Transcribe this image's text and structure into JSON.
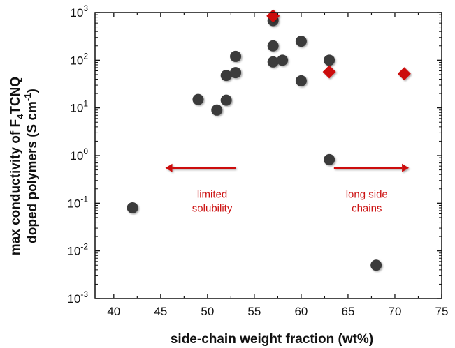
{
  "chart_data": {
    "type": "scatter",
    "xlabel": "side-chain weight fraction (wt%)",
    "ylabel": {
      "line1_pre": "max conductivity of F",
      "line1_sub": "4",
      "line1_post": "TCNQ",
      "line2_pre": "doped polymers (S cm",
      "line2_sup": "-1",
      "line2_post": ")"
    },
    "xlim": [
      38,
      75
    ],
    "ylim": [
      0.001,
      1000
    ],
    "yscale": "log",
    "grid": false,
    "x_ticks": [
      40,
      45,
      50,
      55,
      60,
      65,
      70,
      75
    ],
    "y_ticks": [
      {
        "value": 0.001,
        "base": "10",
        "exp": "-3"
      },
      {
        "value": 0.01,
        "base": "10",
        "exp": "-2"
      },
      {
        "value": 0.1,
        "base": "10",
        "exp": "-1"
      },
      {
        "value": 1,
        "base": "10",
        "exp": "0"
      },
      {
        "value": 10,
        "base": "10",
        "exp": "1"
      },
      {
        "value": 100,
        "base": "10",
        "exp": "2"
      },
      {
        "value": 1000,
        "base": "10",
        "exp": "3"
      }
    ],
    "series": [
      {
        "marker": "circle",
        "color": "#3a3a3a",
        "points": [
          {
            "x": 42,
            "y": 0.08
          },
          {
            "x": 49,
            "y": 15
          },
          {
            "x": 51,
            "y": 9
          },
          {
            "x": 52,
            "y": 14.5
          },
          {
            "x": 52,
            "y": 48
          },
          {
            "x": 53,
            "y": 55
          },
          {
            "x": 53,
            "y": 120
          },
          {
            "x": 57,
            "y": 680
          },
          {
            "x": 57,
            "y": 200
          },
          {
            "x": 57,
            "y": 92
          },
          {
            "x": 58,
            "y": 100
          },
          {
            "x": 60,
            "y": 250
          },
          {
            "x": 60,
            "y": 37
          },
          {
            "x": 63,
            "y": 100
          },
          {
            "x": 63,
            "y": 0.82
          },
          {
            "x": 68,
            "y": 0.005
          }
        ]
      },
      {
        "marker": "diamond",
        "color": "#cc1111",
        "points": [
          {
            "x": 57,
            "y": 850
          },
          {
            "x": 63,
            "y": 57
          },
          {
            "x": 71,
            "y": 52
          }
        ]
      }
    ],
    "annotations": [
      {
        "lines": [
          "limited",
          "solubility"
        ],
        "x": 50.5,
        "y": 0.13,
        "color": "#cc1111"
      },
      {
        "lines": [
          "long side",
          "chains"
        ],
        "x": 67,
        "y": 0.13,
        "color": "#cc1111"
      }
    ],
    "arrows": [
      {
        "from": [
          53,
          0.55
        ],
        "to": [
          45.5,
          0.55
        ],
        "color": "#cc1111"
      },
      {
        "from": [
          63.5,
          0.55
        ],
        "to": [
          71.5,
          0.55
        ],
        "color": "#cc1111"
      }
    ]
  }
}
